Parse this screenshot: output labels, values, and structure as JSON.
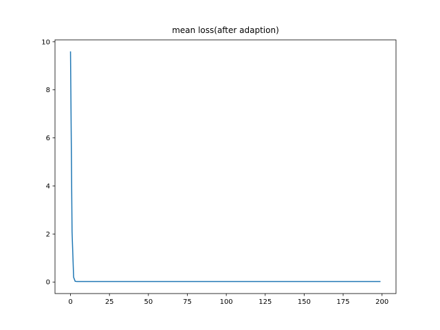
{
  "chart_data": {
    "type": "line",
    "title": "mean loss(after adaption)",
    "xlabel": "",
    "ylabel": "",
    "xlim": [
      -9.95,
      208.95
    ],
    "ylim": [
      -0.48,
      10.08
    ],
    "xticks": [
      0,
      25,
      50,
      75,
      100,
      125,
      150,
      175,
      200
    ],
    "yticks": [
      0,
      2,
      4,
      6,
      8,
      10
    ],
    "grid": false,
    "legend": "none",
    "series": [
      {
        "color": "#1f77b4",
        "x": [
          0,
          1,
          2,
          3,
          4,
          5,
          10,
          25,
          50,
          75,
          100,
          125,
          150,
          175,
          199
        ],
        "y": [
          9.6,
          2.1,
          0.2,
          0.03,
          0.02,
          0.02,
          0.02,
          0.02,
          0.02,
          0.02,
          0.02,
          0.02,
          0.02,
          0.02,
          0.02
        ]
      }
    ]
  }
}
